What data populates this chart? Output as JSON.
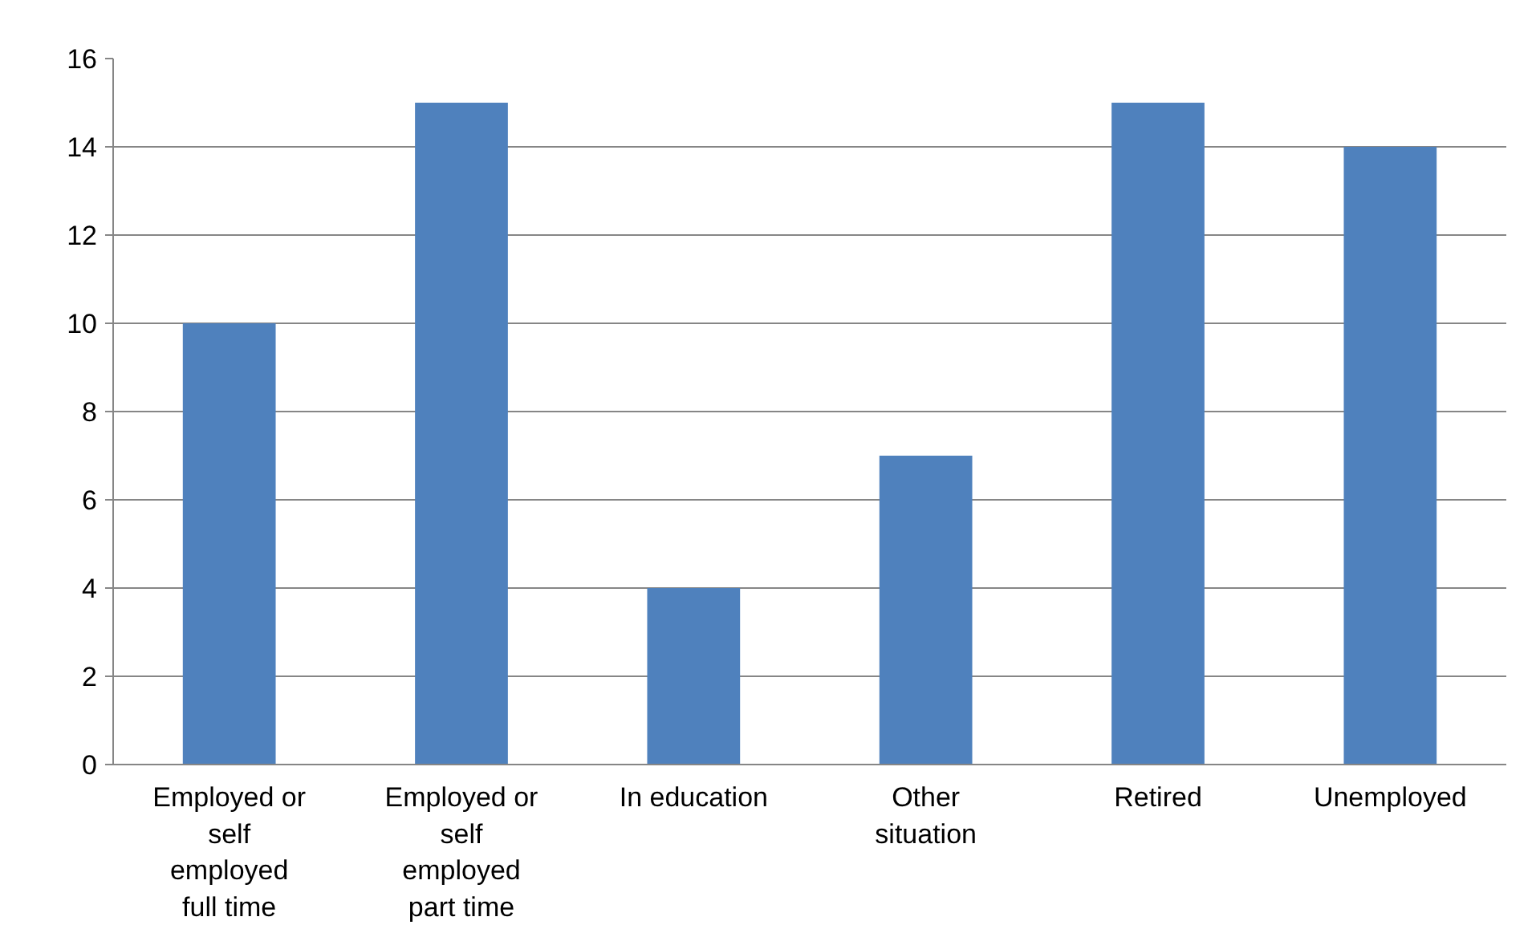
{
  "chart_data": {
    "type": "bar",
    "categories": [
      "Employed or self employed full time",
      "Employed or self employed part time",
      "In education",
      "Other situation",
      "Retired",
      "Unemployed"
    ],
    "values": [
      10,
      15,
      4,
      7,
      15,
      14
    ],
    "color": "#4f81bd",
    "ylim": [
      0,
      16
    ],
    "yticks": [
      0,
      2,
      4,
      6,
      8,
      10,
      12,
      14,
      16
    ],
    "grid": "y"
  }
}
